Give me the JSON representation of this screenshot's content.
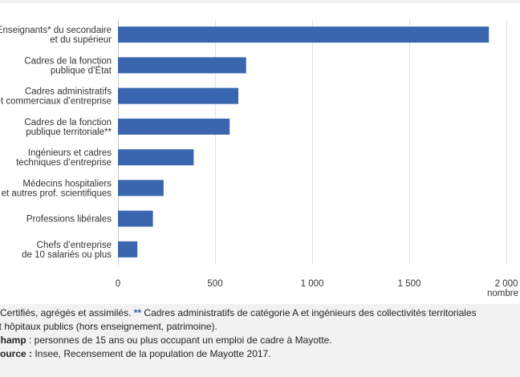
{
  "chart_data": {
    "type": "bar",
    "orientation": "horizontal",
    "categories": [
      [
        "Enseignants* du secondaire",
        "et du supérieur"
      ],
      [
        "Cadres de la fonction",
        "publique d’État"
      ],
      [
        "Cadres administratifs",
        "et commerciaux d’entreprise"
      ],
      [
        "Cadres de la fonction",
        "publique territoriale**"
      ],
      [
        "Ingénieurs et cadres",
        "techniques d’entreprise"
      ],
      [
        "Médecins hospitaliers",
        "et autres prof. scientifiques"
      ],
      [
        "Professions libérales"
      ],
      [
        "Chefs d’entreprise",
        "de 10 salariés ou plus"
      ]
    ],
    "values": [
      1910,
      660,
      620,
      575,
      390,
      235,
      180,
      100
    ],
    "xlim": [
      0,
      2000
    ],
    "x_ticks": [
      0,
      500,
      1000,
      1500,
      2000
    ],
    "x_tick_labels": [
      "0",
      "500",
      "1 000",
      "1 500",
      "2 000"
    ],
    "xlabel": "nombre",
    "bar_color": "#3a66b0",
    "grid": true
  },
  "notes": {
    "line1_prefix": "* Certifiés, agrégés et assimilés. ",
    "line1_stars": "**",
    "line1_rest": " Cadres administratifs de catégorie A et ingénieurs des collectivités territoriales",
    "line2": "et hôpitaux publics (hors enseignement, patrimoine).",
    "champ_label": "Champ",
    "champ_text": " : personnes de 15 ans ou plus occupant un emploi de cadre à Mayotte.",
    "source_label": "Source :",
    "source_text": " Insee, Recensement de la population de Mayotte 2017."
  }
}
